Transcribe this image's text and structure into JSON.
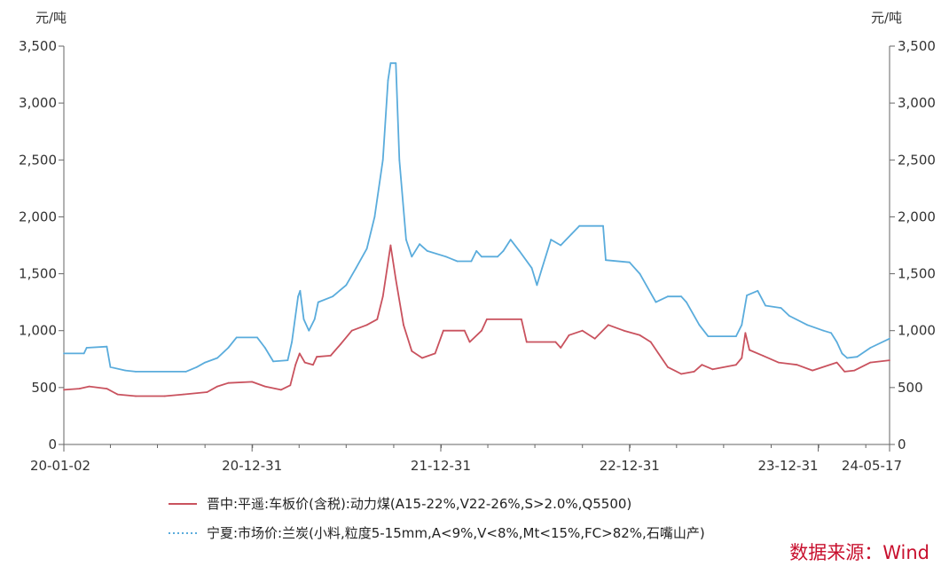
{
  "chart_data": {
    "type": "line",
    "y_unit_left": "元/吨",
    "y_unit_right": "元/吨",
    "ylim": [
      0,
      3500
    ],
    "y_ticks": [
      0,
      500,
      1000,
      1500,
      2000,
      2500,
      3000,
      3500
    ],
    "y_tick_labels": [
      "0",
      "500",
      "1,000",
      "1,500",
      "2,000",
      "2,500",
      "3,000",
      "3,500"
    ],
    "x_range": [
      "2020-01-02",
      "2024-05-17"
    ],
    "x_tick_labels": [
      {
        "label": "20-01-02",
        "date": "2020-01-02"
      },
      {
        "label": "20-12-31",
        "date": "2020-12-31"
      },
      {
        "label": "21-12-31",
        "date": "2021-12-31"
      },
      {
        "label": "22-12-31",
        "date": "2022-12-31"
      },
      {
        "label": "23-12-31",
        "date": "2023-12-31"
      },
      {
        "label": "24-05-17",
        "date": "2024-05-17"
      }
    ],
    "grid": false,
    "legend_position": "bottom",
    "series": [
      {
        "name": "晋中:平遥:车板价(含税):动力煤(A15-22%,V22-26%,S>2.0%,Q5500)",
        "color": "#c9525e",
        "style": "solid",
        "points": [
          [
            "2020-01-02",
            480
          ],
          [
            "2020-02-01",
            490
          ],
          [
            "2020-02-20",
            510
          ],
          [
            "2020-03-25",
            490
          ],
          [
            "2020-04-15",
            440
          ],
          [
            "2020-05-20",
            425
          ],
          [
            "2020-07-15",
            425
          ],
          [
            "2020-08-20",
            440
          ],
          [
            "2020-10-05",
            460
          ],
          [
            "2020-10-25",
            510
          ],
          [
            "2020-11-15",
            540
          ],
          [
            "2020-12-31",
            550
          ],
          [
            "2021-01-25",
            510
          ],
          [
            "2021-02-25",
            480
          ],
          [
            "2021-03-15",
            520
          ],
          [
            "2021-03-25",
            700
          ],
          [
            "2021-04-02",
            800
          ],
          [
            "2021-04-12",
            720
          ],
          [
            "2021-04-28",
            700
          ],
          [
            "2021-05-05",
            770
          ],
          [
            "2021-06-01",
            780
          ],
          [
            "2021-06-20",
            880
          ],
          [
            "2021-07-12",
            1000
          ],
          [
            "2021-08-10",
            1050
          ],
          [
            "2021-08-30",
            1100
          ],
          [
            "2021-09-10",
            1300
          ],
          [
            "2021-09-25",
            1750
          ],
          [
            "2021-10-05",
            1450
          ],
          [
            "2021-10-20",
            1050
          ],
          [
            "2021-11-05",
            820
          ],
          [
            "2021-11-25",
            760
          ],
          [
            "2021-12-20",
            800
          ],
          [
            "2022-01-05",
            1000
          ],
          [
            "2022-02-15",
            1000
          ],
          [
            "2022-02-25",
            900
          ],
          [
            "2022-03-20",
            1000
          ],
          [
            "2022-03-30",
            1100
          ],
          [
            "2022-06-05",
            1100
          ],
          [
            "2022-06-15",
            900
          ],
          [
            "2022-08-10",
            900
          ],
          [
            "2022-08-20",
            850
          ],
          [
            "2022-09-05",
            960
          ],
          [
            "2022-10-01",
            1000
          ],
          [
            "2022-10-25",
            930
          ],
          [
            "2022-11-20",
            1050
          ],
          [
            "2022-12-20",
            1000
          ],
          [
            "2023-01-20",
            960
          ],
          [
            "2023-02-10",
            900
          ],
          [
            "2023-02-25",
            800
          ],
          [
            "2023-03-15",
            680
          ],
          [
            "2023-04-10",
            620
          ],
          [
            "2023-05-05",
            640
          ],
          [
            "2023-05-20",
            700
          ],
          [
            "2023-06-10",
            660
          ],
          [
            "2023-07-25",
            700
          ],
          [
            "2023-08-05",
            760
          ],
          [
            "2023-08-12",
            980
          ],
          [
            "2023-08-20",
            830
          ],
          [
            "2023-09-15",
            780
          ],
          [
            "2023-10-15",
            720
          ],
          [
            "2023-11-20",
            700
          ],
          [
            "2023-12-20",
            650
          ],
          [
            "2024-02-05",
            720
          ],
          [
            "2024-02-20",
            640
          ],
          [
            "2024-03-10",
            650
          ],
          [
            "2024-04-10",
            720
          ],
          [
            "2024-05-17",
            740
          ]
        ]
      },
      {
        "name": "宁夏:市场价:兰炭(小料,粒度5-15mm,A<9%,V<8%,Mt<15%,FC>82%,石嘴山产)",
        "color": "#5aacdc",
        "style": "solid",
        "points": [
          [
            "2020-01-02",
            800
          ],
          [
            "2020-02-10",
            800
          ],
          [
            "2020-02-15",
            850
          ],
          [
            "2020-03-25",
            860
          ],
          [
            "2020-04-01",
            680
          ],
          [
            "2020-04-30",
            650
          ],
          [
            "2020-05-20",
            640
          ],
          [
            "2020-08-25",
            640
          ],
          [
            "2020-09-15",
            680
          ],
          [
            "2020-10-01",
            720
          ],
          [
            "2020-10-25",
            760
          ],
          [
            "2020-11-15",
            850
          ],
          [
            "2020-12-01",
            940
          ],
          [
            "2021-01-10",
            940
          ],
          [
            "2021-01-25",
            850
          ],
          [
            "2021-02-10",
            730
          ],
          [
            "2021-03-10",
            740
          ],
          [
            "2021-03-18",
            900
          ],
          [
            "2021-03-30",
            1300
          ],
          [
            "2021-04-03",
            1350
          ],
          [
            "2021-04-10",
            1100
          ],
          [
            "2021-04-20",
            1000
          ],
          [
            "2021-05-01",
            1100
          ],
          [
            "2021-05-08",
            1250
          ],
          [
            "2021-06-05",
            1300
          ],
          [
            "2021-07-01",
            1400
          ],
          [
            "2021-07-20",
            1550
          ],
          [
            "2021-08-10",
            1720
          ],
          [
            "2021-08-25",
            2000
          ],
          [
            "2021-09-10",
            2500
          ],
          [
            "2021-09-20",
            3200
          ],
          [
            "2021-09-25",
            3350
          ],
          [
            "2021-10-05",
            3350
          ],
          [
            "2021-10-12",
            2500
          ],
          [
            "2021-10-25",
            1800
          ],
          [
            "2021-11-05",
            1650
          ],
          [
            "2021-11-20",
            1760
          ],
          [
            "2021-12-05",
            1700
          ],
          [
            "2022-01-10",
            1650
          ],
          [
            "2022-02-01",
            1610
          ],
          [
            "2022-02-28",
            1610
          ],
          [
            "2022-03-10",
            1700
          ],
          [
            "2022-03-20",
            1650
          ],
          [
            "2022-04-20",
            1650
          ],
          [
            "2022-05-01",
            1700
          ],
          [
            "2022-05-15",
            1800
          ],
          [
            "2022-06-01",
            1700
          ],
          [
            "2022-06-25",
            1550
          ],
          [
            "2022-07-05",
            1400
          ],
          [
            "2022-07-15",
            1550
          ],
          [
            "2022-08-01",
            1800
          ],
          [
            "2022-08-20",
            1750
          ],
          [
            "2022-09-10",
            1850
          ],
          [
            "2022-09-25",
            1920
          ],
          [
            "2022-11-10",
            1920
          ],
          [
            "2022-11-15",
            1620
          ],
          [
            "2022-12-31",
            1600
          ],
          [
            "2023-01-20",
            1500
          ],
          [
            "2023-02-20",
            1250
          ],
          [
            "2023-03-15",
            1300
          ],
          [
            "2023-04-10",
            1300
          ],
          [
            "2023-04-20",
            1250
          ],
          [
            "2023-05-15",
            1050
          ],
          [
            "2023-06-01",
            950
          ],
          [
            "2023-07-25",
            950
          ],
          [
            "2023-08-05",
            1050
          ],
          [
            "2023-08-15",
            1310
          ],
          [
            "2023-09-05",
            1350
          ],
          [
            "2023-09-20",
            1220
          ],
          [
            "2023-10-20",
            1200
          ],
          [
            "2023-11-05",
            1130
          ],
          [
            "2023-12-10",
            1050
          ],
          [
            "2024-01-10",
            1000
          ],
          [
            "2024-01-25",
            980
          ],
          [
            "2024-02-05",
            900
          ],
          [
            "2024-02-15",
            800
          ],
          [
            "2024-02-25",
            760
          ],
          [
            "2024-03-15",
            770
          ],
          [
            "2024-04-10",
            850
          ],
          [
            "2024-05-17",
            930
          ]
        ]
      }
    ],
    "source_label": "数据来源：Wind"
  }
}
